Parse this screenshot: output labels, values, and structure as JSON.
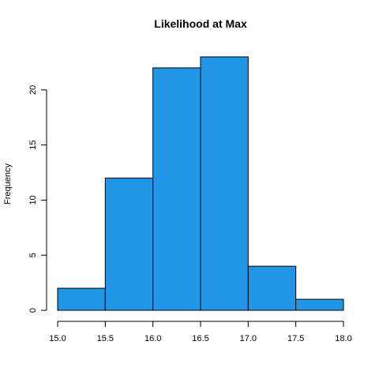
{
  "chart_data": {
    "type": "bar",
    "subtype": "histogram",
    "title": "Likelihood at Max",
    "xlabel": "",
    "ylabel": "Frequency",
    "bins": [
      {
        "x0": 15.0,
        "x1": 15.5,
        "count": 2
      },
      {
        "x0": 15.5,
        "x1": 16.0,
        "count": 12
      },
      {
        "x0": 16.0,
        "x1": 16.5,
        "count": 22
      },
      {
        "x0": 16.5,
        "x1": 17.0,
        "count": 23
      },
      {
        "x0": 17.0,
        "x1": 17.5,
        "count": 4
      },
      {
        "x0": 17.5,
        "x1": 18.0,
        "count": 1
      }
    ],
    "xlim": [
      15.0,
      18.0
    ],
    "ylim": [
      0,
      23
    ],
    "x_ticks": [
      "15.0",
      "15.5",
      "16.0",
      "16.5",
      "17.0",
      "17.5",
      "18.0"
    ],
    "y_ticks": [
      "0",
      "5",
      "10",
      "15",
      "20"
    ],
    "bar_color": "#2196e6",
    "grid": false,
    "legend": "none"
  }
}
